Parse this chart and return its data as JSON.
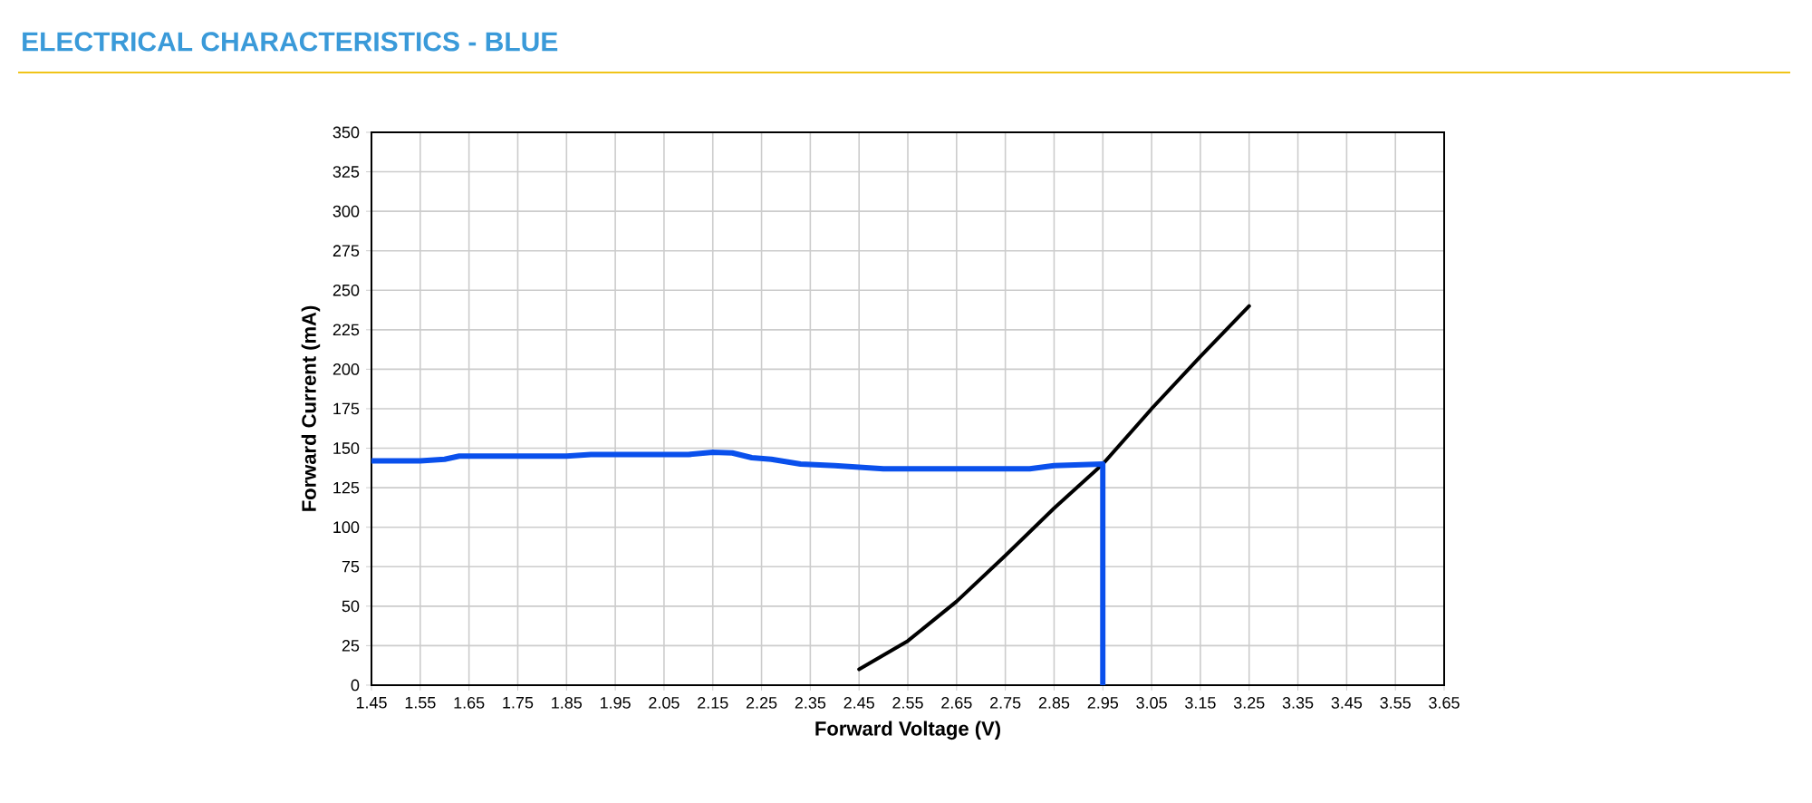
{
  "chart_data": {
    "type": "line",
    "title": "ELECTRICAL CHARACTERISTICS - BLUE",
    "xlabel": "Forward Voltage (V)",
    "ylabel": "Forward Current (mA)",
    "xlim": [
      1.45,
      3.65
    ],
    "ylim": [
      0,
      350
    ],
    "xticks": [
      1.45,
      1.55,
      1.65,
      1.75,
      1.85,
      1.95,
      2.05,
      2.15,
      2.25,
      2.35,
      2.45,
      2.55,
      2.65,
      2.75,
      2.85,
      2.95,
      3.05,
      3.15,
      3.25,
      3.35,
      3.45,
      3.55,
      3.65
    ],
    "yticks": [
      0,
      25,
      50,
      75,
      100,
      125,
      150,
      175,
      200,
      225,
      250,
      275,
      300,
      325,
      350
    ],
    "grid": true,
    "series": [
      {
        "color": "#000000",
        "x": [
          2.45,
          2.55,
          2.65,
          2.75,
          2.85,
          2.95,
          3.05,
          3.15,
          3.25
        ],
        "values": [
          10,
          28,
          53,
          82,
          112,
          140,
          175,
          208,
          240
        ]
      },
      {
        "color": "#0a50ec",
        "x": [
          1.45,
          1.55,
          1.6,
          1.63,
          1.85,
          1.9,
          2.1,
          2.15,
          2.19,
          2.23,
          2.27,
          2.33,
          2.4,
          2.5,
          2.8,
          2.85,
          2.95,
          2.95
        ],
        "values": [
          142,
          142,
          143,
          145,
          145,
          146,
          146,
          147.5,
          147,
          144,
          143,
          140,
          139,
          137,
          137,
          139,
          140,
          0
        ]
      }
    ]
  }
}
